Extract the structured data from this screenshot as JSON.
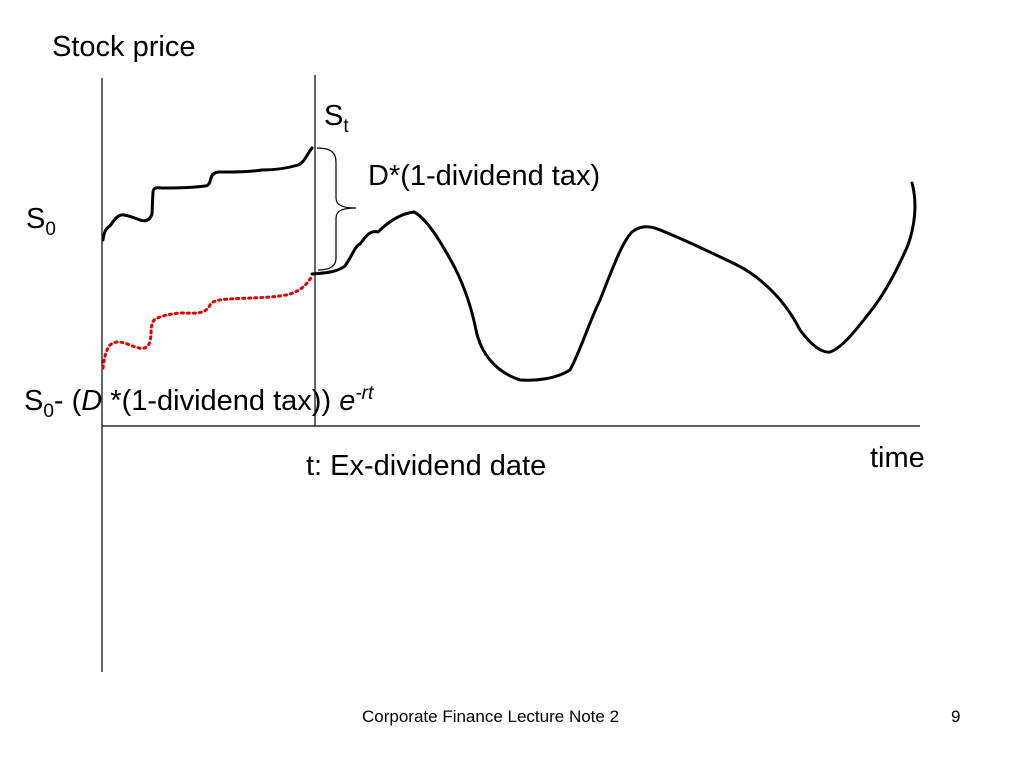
{
  "slide": {
    "y_axis_title": "Stock price",
    "x_axis_title": "time",
    "ex_dividend_label": "t: Ex-dividend date",
    "s_t": {
      "base": "S",
      "sub": "t"
    },
    "s_0": {
      "base": "S",
      "sub": "0"
    },
    "dividend_label": "D*(1-dividend tax)",
    "pv_label": {
      "base": "S",
      "sub": "0",
      "minus": "- (",
      "d": "D",
      "rest": " *(1-dividend tax)) ",
      "e": "e",
      "exp": "-rt"
    }
  },
  "footer": {
    "title": "Corporate Finance Lecture Note 2",
    "page_number": "9"
  },
  "colors": {
    "line": "#000000",
    "dotted": "#e00000"
  }
}
